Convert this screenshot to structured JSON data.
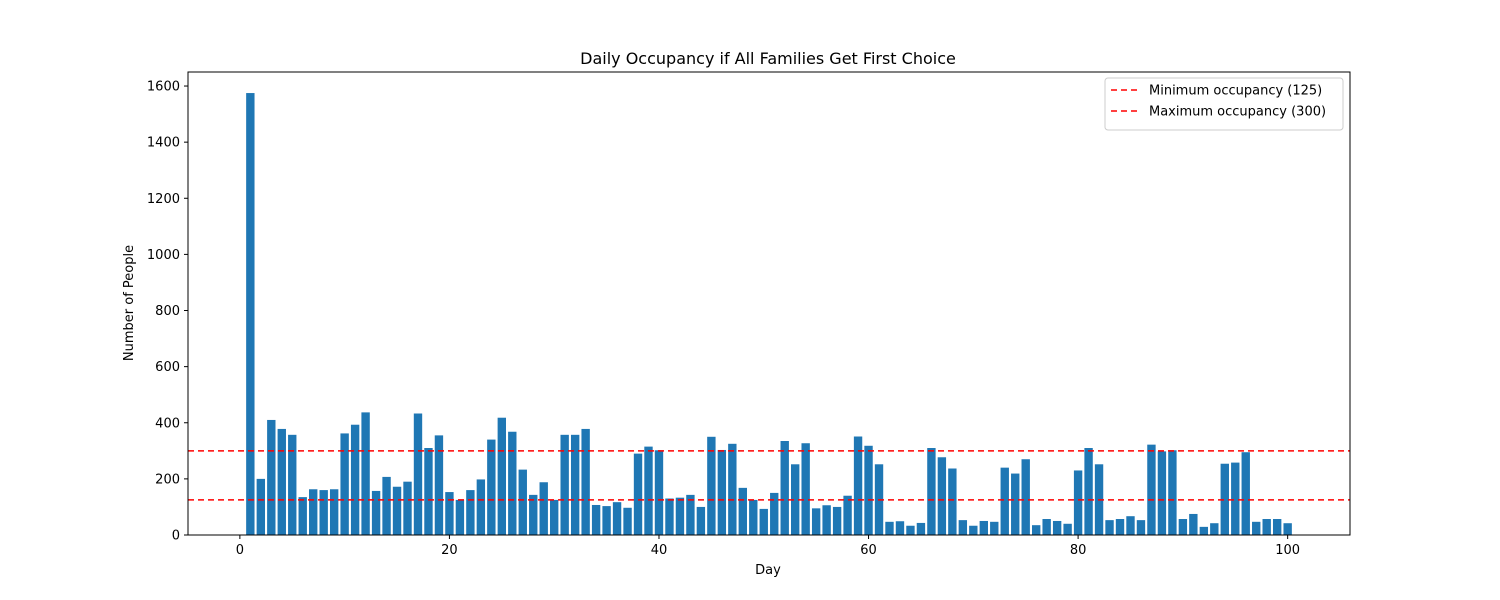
{
  "chart_data": {
    "type": "bar",
    "title": "Daily Occupancy if All Families Get First Choice",
    "xlabel": "Day",
    "ylabel": "Number of People",
    "xlim": [
      -4.95,
      105.95
    ],
    "ylim": [
      0,
      1650
    ],
    "xticks": [
      0,
      20,
      40,
      60,
      80,
      100
    ],
    "yticks": [
      0,
      200,
      400,
      600,
      800,
      1000,
      1200,
      1400,
      1600
    ],
    "grid": false,
    "legend_position": "top-right",
    "bar_color": "#1f77b4",
    "x": [
      1,
      2,
      3,
      4,
      5,
      6,
      7,
      8,
      9,
      10,
      11,
      12,
      13,
      14,
      15,
      16,
      17,
      18,
      19,
      20,
      21,
      22,
      23,
      24,
      25,
      26,
      27,
      28,
      29,
      30,
      31,
      32,
      33,
      34,
      35,
      36,
      37,
      38,
      39,
      40,
      41,
      42,
      43,
      44,
      45,
      46,
      47,
      48,
      49,
      50,
      51,
      52,
      53,
      54,
      55,
      56,
      57,
      58,
      59,
      60,
      61,
      62,
      63,
      64,
      65,
      66,
      67,
      68,
      69,
      70,
      71,
      72,
      73,
      74,
      75,
      76,
      77,
      78,
      79,
      80,
      81,
      82,
      83,
      84,
      85,
      86,
      87,
      88,
      89,
      90,
      91,
      92,
      93,
      94,
      95,
      96,
      97,
      98,
      99,
      100
    ],
    "values": [
      1575,
      200,
      410,
      378,
      357,
      135,
      163,
      160,
      163,
      362,
      393,
      437,
      157,
      207,
      172,
      190,
      433,
      310,
      355,
      153,
      125,
      160,
      198,
      340,
      418,
      368,
      233,
      143,
      188,
      125,
      357,
      357,
      378,
      107,
      103,
      117,
      97,
      290,
      315,
      302,
      130,
      133,
      143,
      100,
      350,
      303,
      325,
      168,
      125,
      93,
      150,
      335,
      252,
      327,
      95,
      106,
      100,
      140,
      351,
      318,
      252,
      47,
      49,
      33,
      43,
      310,
      277,
      237,
      53,
      33,
      50,
      47,
      240,
      219,
      270,
      35,
      57,
      50,
      40,
      230,
      310,
      252,
      53,
      57,
      67,
      53,
      322,
      298,
      302,
      57,
      75,
      29,
      42,
      254,
      258,
      295,
      47,
      57,
      57,
      42
    ],
    "reference_lines": [
      {
        "label": "Minimum occupancy (125)",
        "y": 125,
        "color": "#ff0000",
        "style": "dashed"
      },
      {
        "label": "Maximum occupancy (300)",
        "y": 300,
        "color": "#ff0000",
        "style": "dashed"
      }
    ]
  }
}
